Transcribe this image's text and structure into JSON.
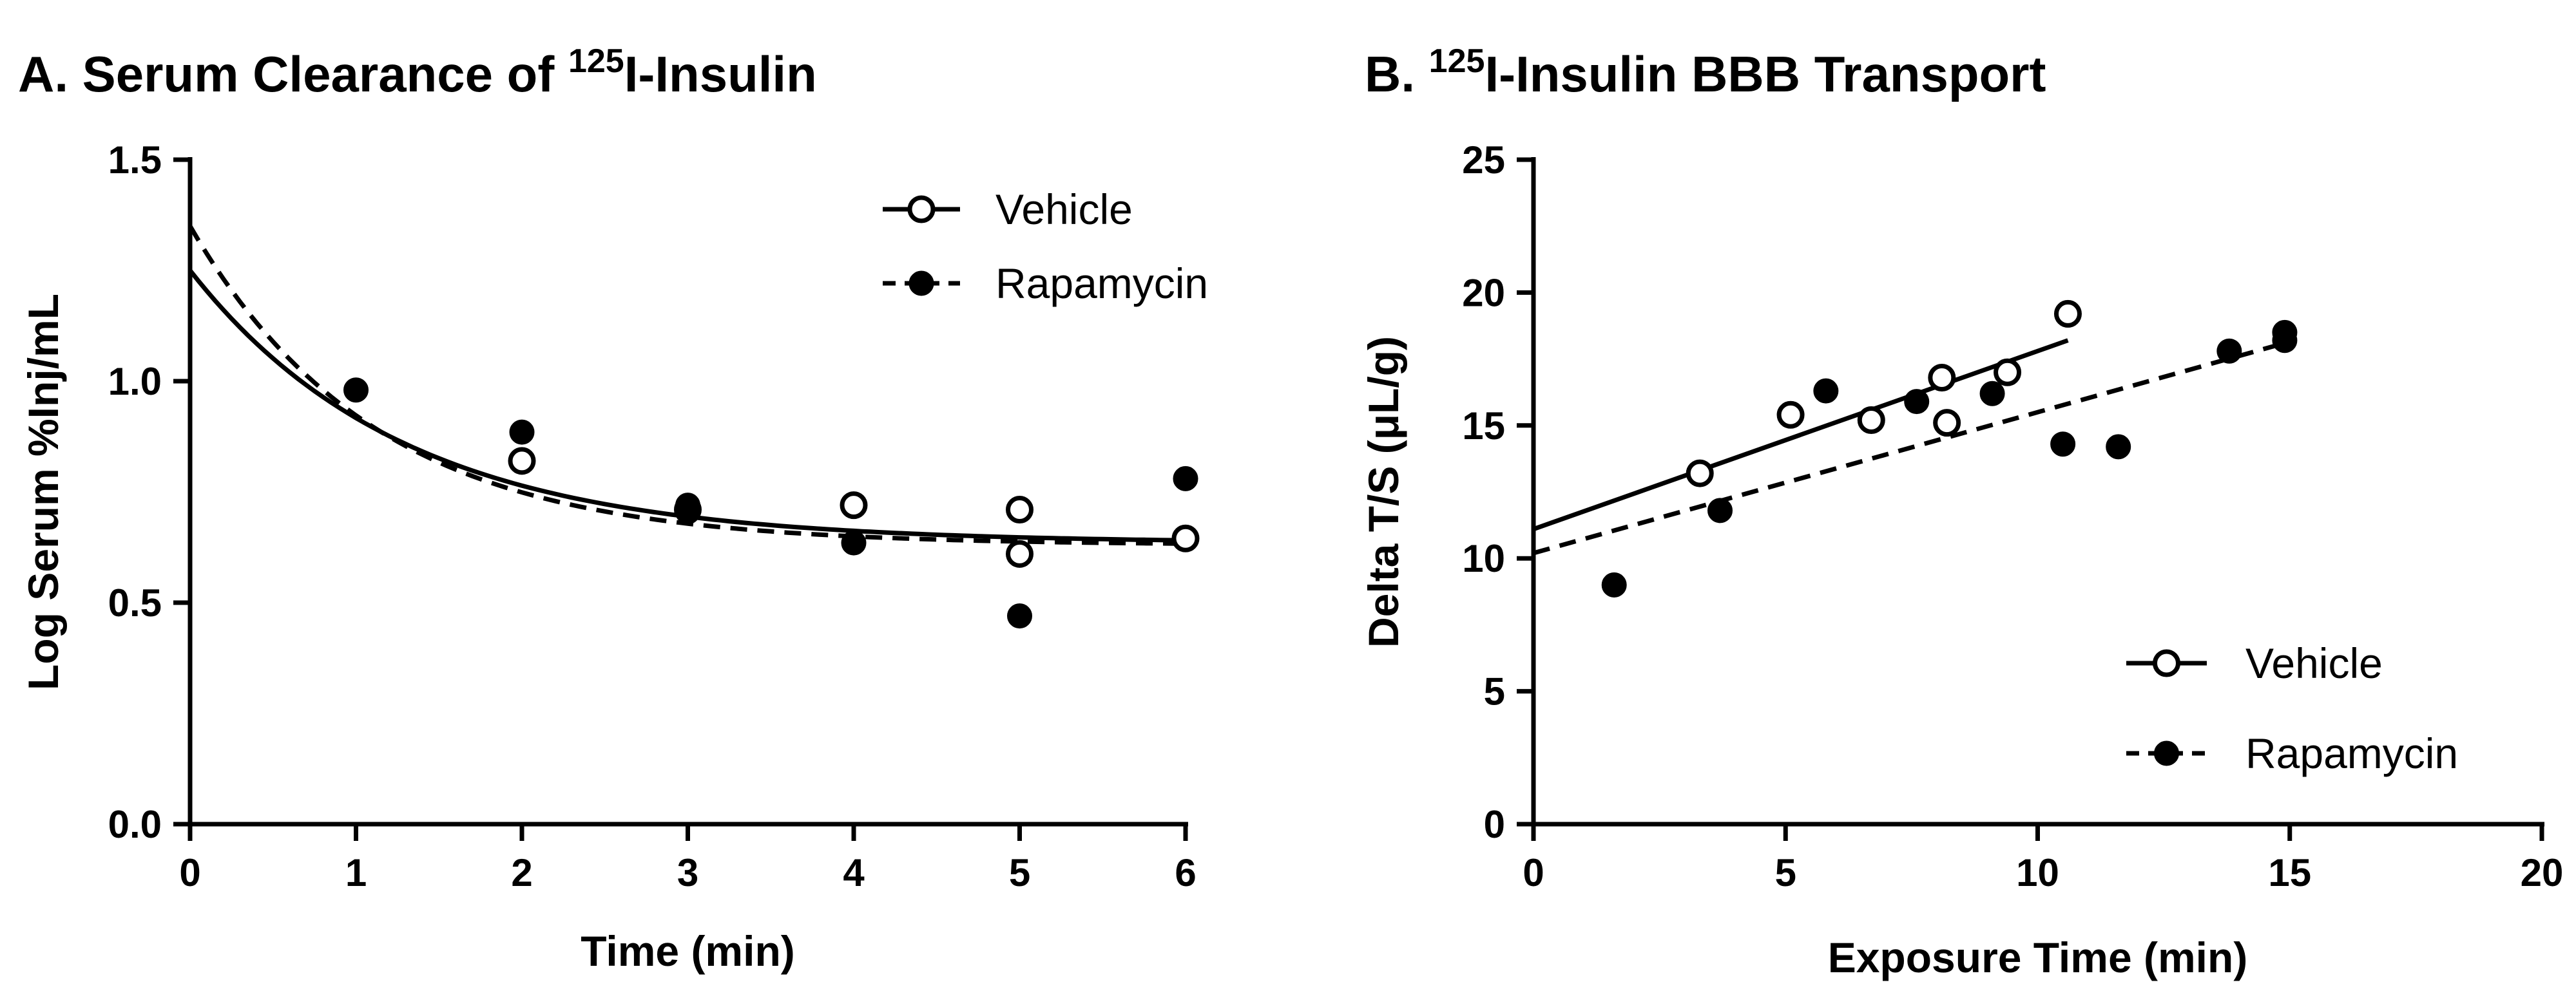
{
  "chart_data": [
    {
      "type": "scatter",
      "title_parts": [
        "A. Serum Clearance of ",
        "125",
        "I-Insulin"
      ],
      "xlabel": "Time (min)",
      "ylabel": "Log Serum %Inj/mL",
      "xlim": [
        0,
        6
      ],
      "ylim": [
        0,
        1.5
      ],
      "xticks": [
        0,
        1,
        2,
        3,
        4,
        5,
        6
      ],
      "xtick_labels": [
        "0",
        "1",
        "2",
        "3",
        "4",
        "5",
        "6"
      ],
      "yticks": [
        0,
        0.5,
        1.0,
        1.5
      ],
      "ytick_labels": [
        "0.0",
        "0.5",
        "1.0",
        "1.5"
      ],
      "grid": false,
      "legend_position": "top-right",
      "series": [
        {
          "name": "Vehicle",
          "marker": "open-circle",
          "line": "solid",
          "points": [
            [
              2,
              0.82
            ],
            [
              3,
              0.71
            ],
            [
              4,
              0.72
            ],
            [
              5,
              0.71
            ],
            [
              5,
              0.61
            ],
            [
              6,
              0.645
            ]
          ],
          "fit": {
            "kind": "exponential-decay",
            "y0": 1.25,
            "plateau": 0.635,
            "k": 0.78
          }
        },
        {
          "name": "Rapamycin",
          "marker": "filled-circle",
          "line": "dashed",
          "points": [
            [
              1,
              0.98
            ],
            [
              2,
              0.885
            ],
            [
              3,
              0.72
            ],
            [
              3,
              0.705
            ],
            [
              4,
              0.635
            ],
            [
              5,
              0.47
            ],
            [
              6,
              0.78
            ]
          ],
          "fit": {
            "kind": "exponential-decay",
            "y0": 1.35,
            "plateau": 0.63,
            "k": 0.9
          }
        }
      ]
    },
    {
      "type": "scatter",
      "title_parts": [
        "B. ",
        "125",
        "I-Insulin BBB Transport"
      ],
      "xlabel": "Exposure Time (min)",
      "ylabel": "Delta T/S (μL/g)",
      "xlim": [
        0,
        20
      ],
      "ylim": [
        0,
        25
      ],
      "xticks": [
        0,
        5,
        10,
        15,
        20
      ],
      "xtick_labels": [
        "0",
        "5",
        "10",
        "15",
        "20"
      ],
      "yticks": [
        0,
        5,
        10,
        15,
        20,
        25
      ],
      "ytick_labels": [
        "0",
        "5",
        "10",
        "15",
        "20",
        "25"
      ],
      "grid": false,
      "legend_position": "bottom-right",
      "series": [
        {
          "name": "Vehicle",
          "marker": "open-circle",
          "line": "solid",
          "points": [
            [
              3.3,
              13.2
            ],
            [
              5.1,
              15.4
            ],
            [
              6.7,
              15.2
            ],
            [
              8.1,
              16.8
            ],
            [
              8.2,
              15.1
            ],
            [
              9.4,
              17.0
            ],
            [
              10.6,
              19.2
            ]
          ],
          "fit": {
            "kind": "linear",
            "slope": 0.67,
            "intercept": 11.1,
            "xrange": [
              0,
              10.6
            ]
          }
        },
        {
          "name": "Rapamycin",
          "marker": "filled-circle",
          "line": "dashed",
          "points": [
            [
              1.6,
              9.0
            ],
            [
              3.7,
              11.8
            ],
            [
              5.8,
              16.3
            ],
            [
              7.6,
              15.9
            ],
            [
              9.1,
              16.2
            ],
            [
              10.5,
              14.3
            ],
            [
              11.6,
              14.2
            ],
            [
              13.8,
              17.8
            ],
            [
              14.9,
              18.5
            ],
            [
              14.9,
              18.2
            ]
          ],
          "fit": {
            "kind": "linear",
            "slope": 0.53,
            "intercept": 10.2,
            "xrange": [
              0,
              14.9
            ]
          }
        }
      ]
    }
  ]
}
